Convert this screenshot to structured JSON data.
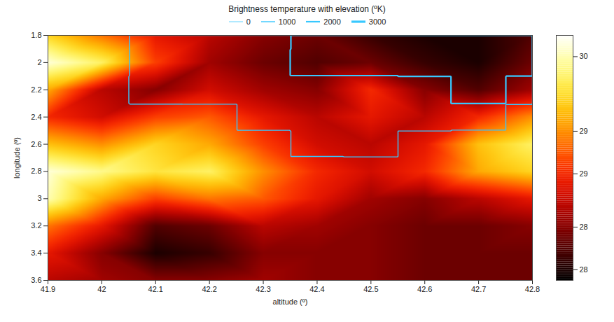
{
  "chart_data": {
    "type": "heatmap",
    "title": "Brightness temperature with elevation (ºK)",
    "x_label": "altitude (º)",
    "y_label": "longitude (º)",
    "x": [
      41.9,
      42,
      42.1,
      42.2,
      42.3,
      42.4,
      42.5,
      42.6,
      42.7,
      42.8
    ],
    "y": [
      1.8,
      2,
      2.2,
      2.4,
      2.6,
      2.8,
      3,
      3.2,
      3.4,
      3.6
    ],
    "xlim": [
      41.9,
      42.8
    ],
    "xticks": [
      41.9,
      42,
      42.1,
      42.2,
      42.3,
      42.4,
      42.5,
      42.6,
      42.7,
      42.8
    ],
    "ylim": [
      1.8,
      3.6
    ],
    "yticks": [
      1.8,
      2,
      2.2,
      2.4,
      2.6,
      2.8,
      3,
      3.2,
      3.4,
      3.6
    ],
    "cells": [
      [
        29.6,
        29.2,
        28.8,
        28.6,
        28.4,
        28.3,
        28.1,
        28.0,
        28.0,
        28.2
      ],
      [
        30.1,
        29.8,
        29.0,
        28.5,
        28.3,
        28.2,
        28.3,
        28.1,
        28.0,
        28.3
      ],
      [
        29.4,
        28.6,
        28.4,
        28.7,
        28.5,
        28.4,
        28.9,
        28.4,
        28.2,
        28.5
      ],
      [
        28.9,
        28.7,
        29.0,
        29.1,
        28.8,
        28.6,
        28.8,
        28.6,
        28.9,
        29.3
      ],
      [
        29.5,
        29.3,
        29.6,
        29.4,
        29.0,
        28.7,
        28.6,
        28.8,
        29.5,
        29.8
      ],
      [
        30.1,
        29.9,
        29.7,
        29.8,
        29.3,
        28.9,
        28.7,
        28.9,
        29.4,
        29.6
      ],
      [
        30.0,
        29.4,
        29.0,
        29.2,
        29.1,
        28.8,
        28.5,
        28.4,
        28.6,
        28.8
      ],
      [
        29.2,
        28.8,
        28.2,
        28.3,
        28.6,
        28.5,
        28.4,
        28.3,
        28.3,
        28.4
      ],
      [
        28.8,
        28.4,
        28.0,
        28.1,
        28.4,
        28.4,
        28.4,
        28.3,
        28.3,
        28.3
      ],
      [
        28.6,
        28.5,
        28.4,
        28.4,
        28.5,
        28.4,
        28.4,
        28.3,
        28.3,
        28.3
      ]
    ],
    "elevation": [
      [
        300,
        600,
        1200,
        1500,
        1800,
        2000,
        2300,
        2500,
        2600,
        2400
      ],
      [
        200,
        500,
        1100,
        1600,
        1900,
        2100,
        2200,
        2600,
        2700,
        2300
      ],
      [
        400,
        900,
        1300,
        1200,
        1500,
        1700,
        1400,
        1900,
        2200,
        1800
      ],
      [
        500,
        700,
        800,
        900,
        1100,
        1300,
        1200,
        1400,
        1100,
        900
      ],
      [
        300,
        400,
        500,
        600,
        800,
        1000,
        1100,
        900,
        600,
        400
      ],
      [
        100,
        200,
        300,
        400,
        500,
        700,
        800,
        600,
        400,
        200
      ],
      [
        100,
        150,
        300,
        350,
        400,
        500,
        600,
        500,
        300,
        150
      ],
      [
        50,
        100,
        150,
        200,
        250,
        300,
        300,
        200,
        100,
        50
      ],
      [
        0,
        50,
        50,
        100,
        100,
        100,
        100,
        50,
        50,
        0
      ],
      [
        0,
        0,
        0,
        0,
        0,
        0,
        0,
        0,
        0,
        0
      ]
    ],
    "elevation_ticks": [
      0,
      1000,
      2000,
      3000
    ],
    "colorbar": {
      "range": [
        27.9,
        30.2
      ],
      "ticks": [
        {
          "value": 28.0,
          "label": "28"
        },
        {
          "value": 28.4,
          "label": "28"
        },
        {
          "value": 28.9,
          "label": "29"
        },
        {
          "value": 29.3,
          "label": "29"
        },
        30
      ]
    }
  }
}
